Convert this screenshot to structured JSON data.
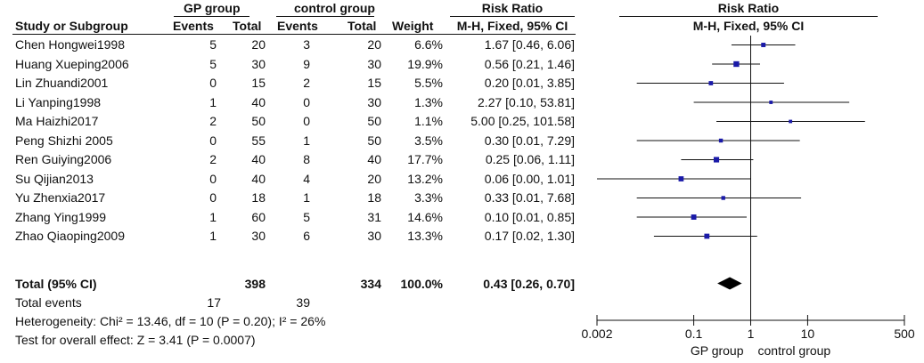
{
  "headers": {
    "study": "Study or Subgroup",
    "group1": "GP group",
    "group2": "control group",
    "events": "Events",
    "total": "Total",
    "weight": "Weight",
    "ratio_title": "Risk Ratio",
    "ratio_method": "M-H, Fixed, 95% CI",
    "plot_title": "Risk Ratio",
    "plot_method": "M-H, Fixed, 95% CI"
  },
  "studies": [
    {
      "name": "Chen Hongwei1998",
      "e1": "5",
      "t1": "20",
      "e2": "3",
      "t2": "20",
      "weight": "6.6%",
      "ci": "1.67 [0.46, 6.06]"
    },
    {
      "name": "Huang Xueping2006",
      "e1": "5",
      "t1": "30",
      "e2": "9",
      "t2": "30",
      "weight": "19.9%",
      "ci": "0.56 [0.21, 1.46]"
    },
    {
      "name": "Lin Zhuandi2001",
      "e1": "0",
      "t1": "15",
      "e2": "2",
      "t2": "15",
      "weight": "5.5%",
      "ci": "0.20 [0.01, 3.85]"
    },
    {
      "name": "Li Yanping1998",
      "e1": "1",
      "t1": "40",
      "e2": "0",
      "t2": "30",
      "weight": "1.3%",
      "ci": "2.27 [0.10, 53.81]"
    },
    {
      "name": "Ma Haizhi2017",
      "e1": "2",
      "t1": "50",
      "e2": "0",
      "t2": "50",
      "weight": "1.1%",
      "ci": "5.00 [0.25, 101.58]"
    },
    {
      "name": "Peng Shizhi 2005",
      "e1": "0",
      "t1": "55",
      "e2": "1",
      "t2": "50",
      "weight": "3.5%",
      "ci": "0.30 [0.01, 7.29]"
    },
    {
      "name": "Ren Guiying2006",
      "e1": "2",
      "t1": "40",
      "e2": "8",
      "t2": "40",
      "weight": "17.7%",
      "ci": "0.25 [0.06, 1.11]"
    },
    {
      "name": "Su Qijian2013",
      "e1": "0",
      "t1": "40",
      "e2": "4",
      "t2": "20",
      "weight": "13.2%",
      "ci": "0.06 [0.00, 1.01]"
    },
    {
      "name": "Yu Zhenxia2017",
      "e1": "0",
      "t1": "18",
      "e2": "1",
      "t2": "18",
      "weight": "3.3%",
      "ci": "0.33 [0.01, 7.68]"
    },
    {
      "name": "Zhang Ying1999",
      "e1": "1",
      "t1": "60",
      "e2": "5",
      "t2": "31",
      "weight": "14.6%",
      "ci": "0.10 [0.01, 0.85]"
    },
    {
      "name": "Zhao Qiaoping2009",
      "e1": "1",
      "t1": "30",
      "e2": "6",
      "t2": "30",
      "weight": "13.3%",
      "ci": "0.17 [0.02, 1.30]"
    }
  ],
  "total": {
    "label": "Total (95% CI)",
    "t1": "398",
    "t2": "334",
    "weight": "100.0%",
    "ci": "0.43 [0.26, 0.70]"
  },
  "total_events": {
    "label": "Total events",
    "e1": "17",
    "e2": "39"
  },
  "heterogeneity": "Heterogeneity: Chi² = 13.46, df = 10 (P = 0.20); I² = 26%",
  "overall_effect": "Test for overall effect: Z = 3.41 (P = 0.0007)",
  "colors": {
    "marker": "#1a1aa8",
    "line": "#111111",
    "diamond": "#000000"
  },
  "chart_data": {
    "type": "forest",
    "scale": "log",
    "xlim": [
      0.002,
      500
    ],
    "ticks": [
      0.002,
      0.1,
      1,
      10,
      500
    ],
    "tick_labels": [
      "0.002",
      "0.1",
      "1",
      "10",
      "500"
    ],
    "xlabel_left": "GP group",
    "xlabel_right": "control group",
    "reference_line": 1,
    "rows": [
      {
        "rr": 1.67,
        "lo": 0.46,
        "hi": 6.06,
        "weight": 6.6
      },
      {
        "rr": 0.56,
        "lo": 0.21,
        "hi": 1.46,
        "weight": 19.9
      },
      {
        "rr": 0.2,
        "lo": 0.01,
        "hi": 3.85,
        "weight": 5.5
      },
      {
        "rr": 2.27,
        "lo": 0.1,
        "hi": 53.81,
        "weight": 1.3
      },
      {
        "rr": 5.0,
        "lo": 0.25,
        "hi": 101.58,
        "weight": 1.1
      },
      {
        "rr": 0.3,
        "lo": 0.01,
        "hi": 7.29,
        "weight": 3.5
      },
      {
        "rr": 0.25,
        "lo": 0.06,
        "hi": 1.11,
        "weight": 17.7
      },
      {
        "rr": 0.06,
        "lo": 0.0,
        "hi": 1.01,
        "weight": 13.2
      },
      {
        "rr": 0.33,
        "lo": 0.01,
        "hi": 7.68,
        "weight": 3.3
      },
      {
        "rr": 0.1,
        "lo": 0.01,
        "hi": 0.85,
        "weight": 14.6
      },
      {
        "rr": 0.17,
        "lo": 0.02,
        "hi": 1.3,
        "weight": 13.3
      }
    ],
    "pooled": {
      "rr": 0.43,
      "lo": 0.26,
      "hi": 0.7
    }
  }
}
